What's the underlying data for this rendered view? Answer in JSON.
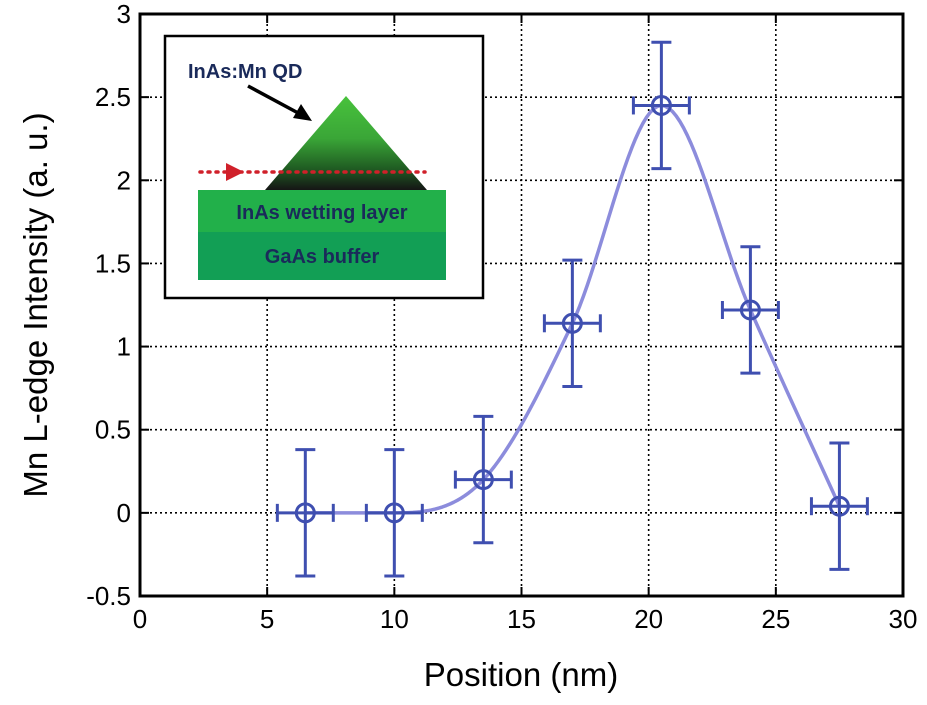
{
  "chart_data": {
    "type": "scatter",
    "xlabel": "Position (nm)",
    "ylabel": "Mn L-edge Intensity (a. u.)",
    "xlim": [
      0,
      30
    ],
    "ylim": [
      -0.5,
      3
    ],
    "xticks": [
      0,
      5,
      10,
      15,
      20,
      25,
      30
    ],
    "xtick_labels": [
      "0",
      "5",
      "10",
      "15",
      "20",
      "25",
      "30"
    ],
    "yticks": [
      -0.5,
      0,
      0.5,
      1,
      1.5,
      2,
      2.5,
      3
    ],
    "ytick_labels": [
      "-0.5",
      "0",
      "0.5",
      "1",
      "1.5",
      "2",
      "2.5",
      "3"
    ],
    "grid": true,
    "series": [
      {
        "points": [
          {
            "x": 6.5,
            "y": 0.0,
            "y_err": 0.38,
            "x_err": 1.1
          },
          {
            "x": 10.0,
            "y": 0.0,
            "y_err": 0.38,
            "x_err": 1.1
          },
          {
            "x": 13.5,
            "y": 0.2,
            "y_err": 0.38,
            "x_err": 1.1
          },
          {
            "x": 17.0,
            "y": 1.14,
            "y_err": 0.38,
            "x_err": 1.1
          },
          {
            "x": 20.5,
            "y": 2.45,
            "y_err": 0.38,
            "x_err": 1.1
          },
          {
            "x": 24.0,
            "y": 1.22,
            "y_err": 0.38,
            "x_err": 1.1
          },
          {
            "x": 27.5,
            "y": 0.04,
            "y_err": 0.38,
            "x_err": 1.1
          }
        ],
        "marker_color": "#3f4fb0",
        "fit_curve_color": "#8c8cdc"
      }
    ],
    "inset": {
      "labels": {
        "qd": "InAs:Mn QD",
        "wetting_layer": "InAs wetting layer",
        "buffer": "GaAs buffer"
      },
      "colors": {
        "qd_top": "#3fbf3f",
        "qd_bottom": "#1a1a1a",
        "wetting_layer": "#22b04a",
        "buffer": "#129f55",
        "label_dark": "#1a2a5a",
        "scan_line": "#d0202a"
      }
    }
  }
}
